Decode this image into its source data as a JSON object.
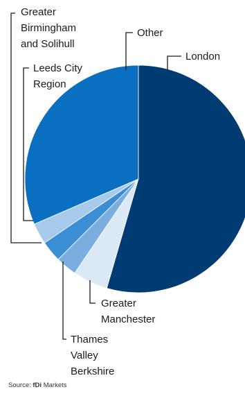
{
  "chart_data": {
    "type": "pie",
    "title": "",
    "slices": [
      {
        "label": [
          "London"
        ],
        "value": 54.5,
        "color": "#003b73"
      },
      {
        "label": [
          "Greater",
          "Manchester"
        ],
        "value": 5.0,
        "color": "#dbe8f5"
      },
      {
        "label": [
          "Thames",
          "Valley",
          "Berkshire"
        ],
        "value": 3.0,
        "color": "#7aaedf"
      },
      {
        "label": [],
        "value": 3.0,
        "color": "#3a8fd4"
      },
      {
        "label": [],
        "value": 3.0,
        "color": "#a7caea"
      },
      {
        "label": [
          "Leeds City",
          "Region"
        ],
        "value": 31.5,
        "color": "#0b6fc1"
      }
    ],
    "extra_labels": {
      "greater_birmingham": [
        "Greater",
        "Birmingham",
        "and Solihull"
      ],
      "other": [
        "Other"
      ]
    },
    "legend": "none"
  },
  "source": {
    "prefix": "Source: ",
    "brand": "fDi",
    "suffix": " Markets"
  }
}
